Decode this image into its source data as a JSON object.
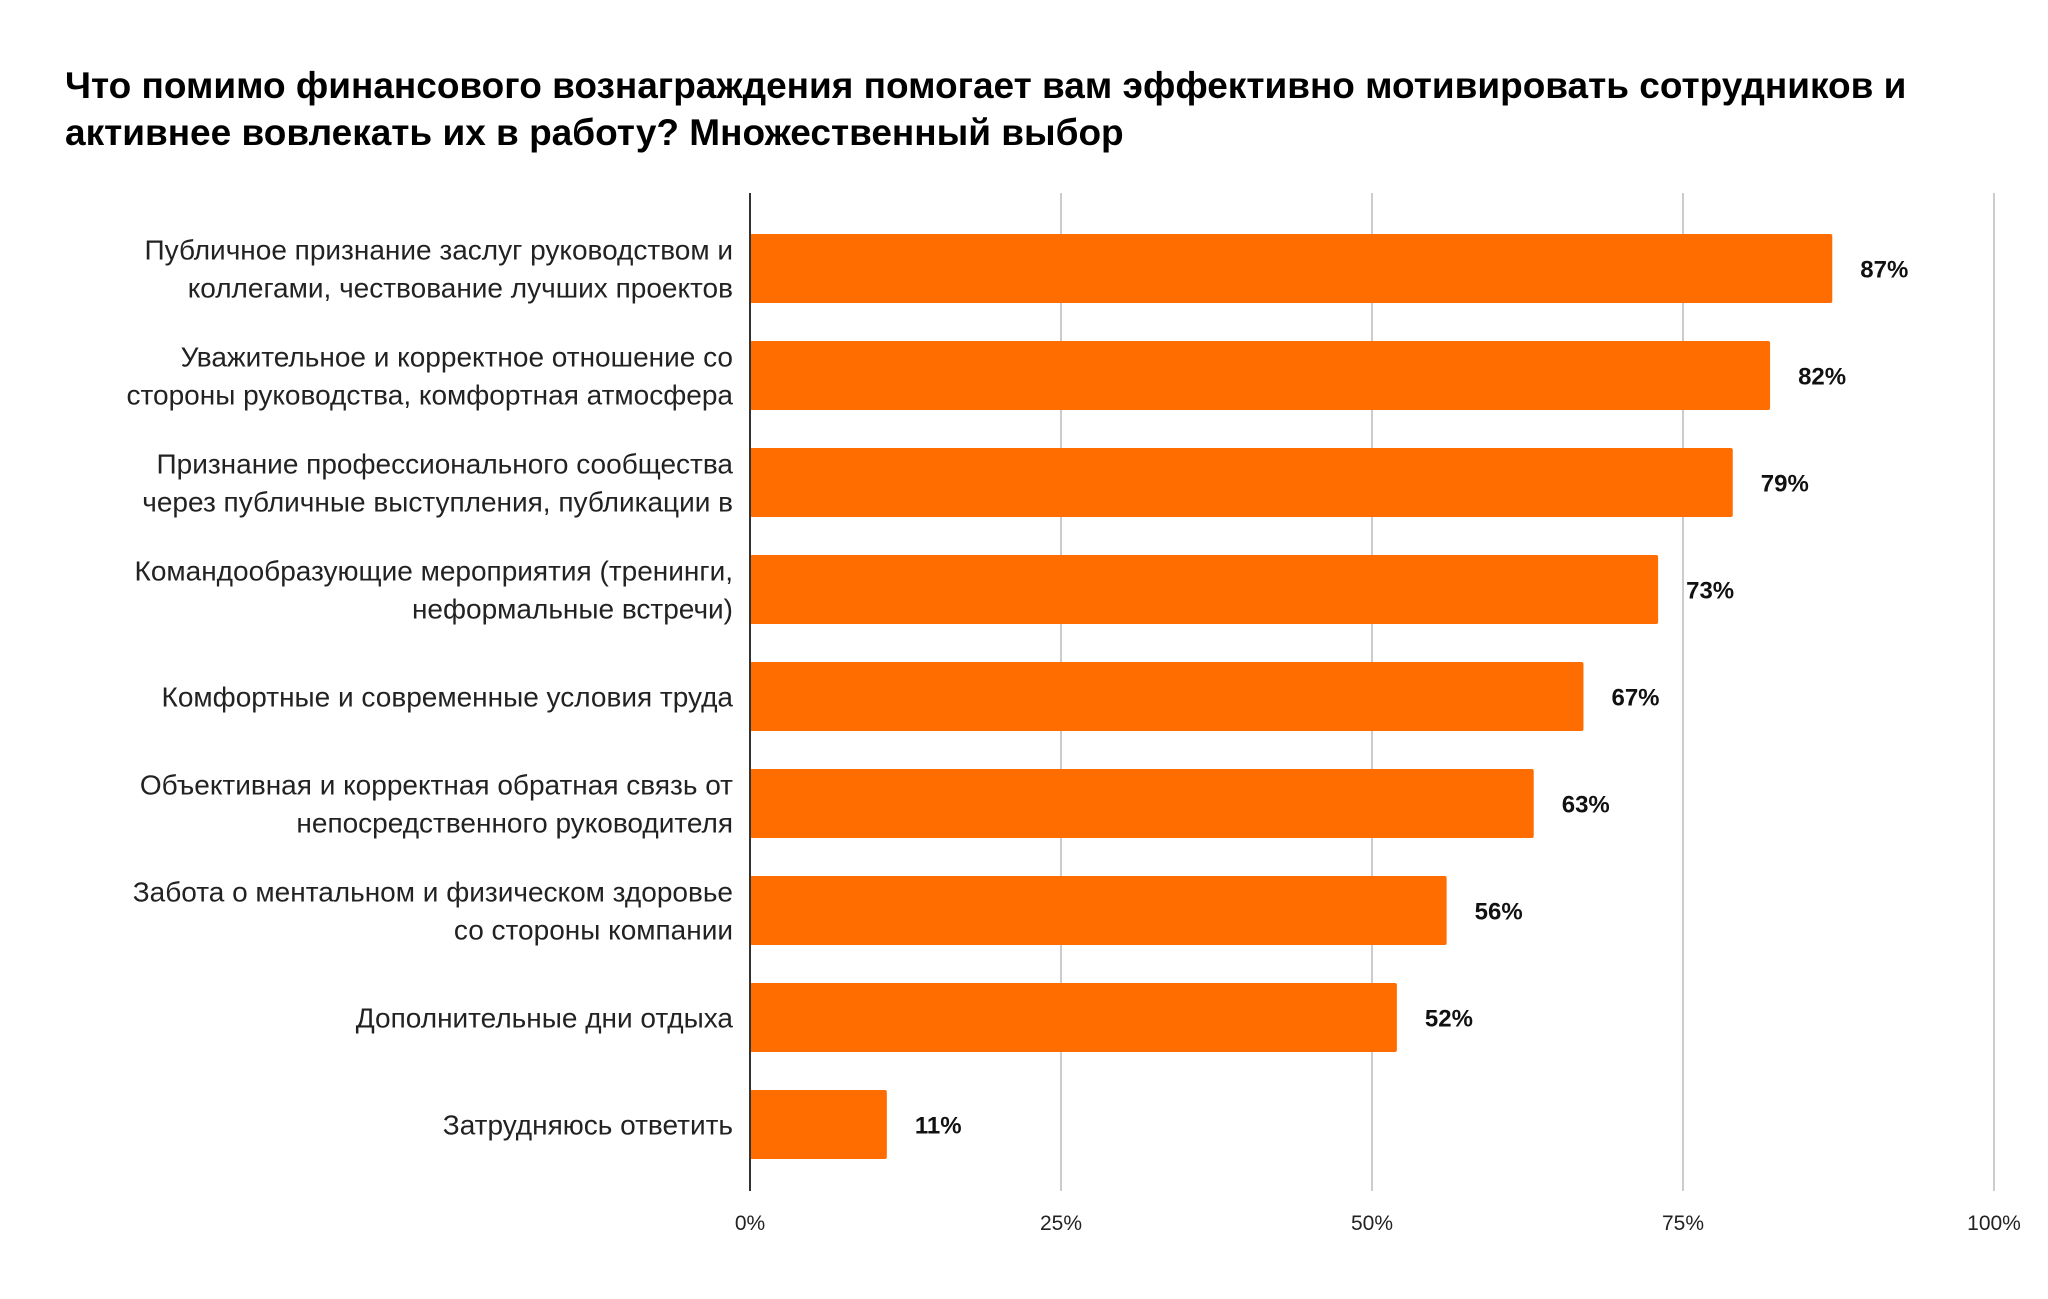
{
  "chart_data": {
    "type": "bar",
    "orientation": "horizontal",
    "title": "Что помимо финансового вознаграждения помогает вам эффективно мотивировать сотрудников и активнее вовлекать их в работу? Множественный выбор",
    "categories": [
      [
        "Публичное признание заслуг руководством и",
        "коллегами, чествование лучших проектов"
      ],
      [
        "Уважительное и корректное отношение со",
        "стороны руководства, комфортная атмосфера"
      ],
      [
        "Признание профессионального сообщества",
        "через публичные выступления, публикации в"
      ],
      [
        "Командообразующие мероприятия (тренинги,",
        "неформальные встречи)"
      ],
      [
        "Комфортные и современные условия труда"
      ],
      [
        "Объективная и корректная обратная связь от",
        "непосредственного руководителя"
      ],
      [
        "Забота о ментальном и физическом здоровье",
        "со стороны компании"
      ],
      [
        "Дополнительные дни отдыха"
      ],
      [
        "Затрудняюсь ответить"
      ]
    ],
    "values": [
      87,
      82,
      79,
      73,
      67,
      63,
      56,
      52,
      11
    ],
    "value_labels": [
      "87%",
      "82%",
      "79%",
      "73%",
      "67%",
      "63%",
      "56%",
      "52%",
      "11%"
    ],
    "xlim": [
      0,
      100
    ],
    "x_ticks": [
      "0%",
      "25%",
      "50%",
      "75%",
      "100%"
    ],
    "grid": true,
    "legend": "none",
    "bar_color": "#FF6D00"
  }
}
